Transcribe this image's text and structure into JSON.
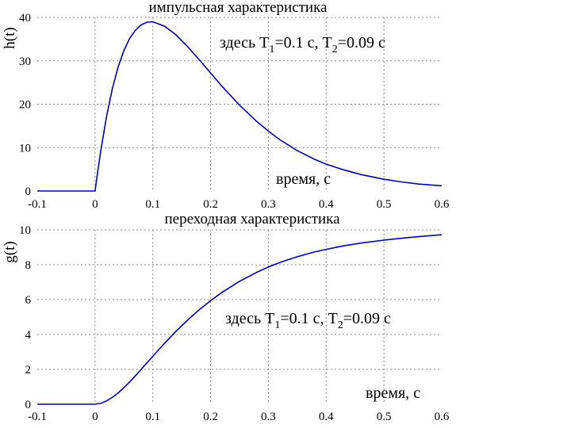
{
  "chart_data": [
    {
      "type": "line",
      "title": "импульсная характеристика",
      "ylabel": "h(t)",
      "xlabel": "время, с",
      "annotation": {
        "prefix": "здесь T",
        "sub1": "1",
        "mid": "=0.1 с, T",
        "sub2": "2",
        "suffix": "=0.09 с"
      },
      "xlim": [
        -0.1,
        0.6
      ],
      "ylim": [
        0,
        40
      ],
      "xticks": [
        "-0.1",
        "0",
        "0.1",
        "0.2",
        "0.3",
        "0.4",
        "0.5",
        "0.6"
      ],
      "xtick_values": [
        -0.1,
        0,
        0.1,
        0.2,
        0.3,
        0.4,
        0.5,
        0.6
      ],
      "yticks": [
        "0",
        "10",
        "20",
        "30",
        "40"
      ],
      "ytick_values": [
        0,
        10,
        20,
        30,
        40
      ],
      "grid": true,
      "line_color": "#0000cc",
      "series": [
        {
          "x": [
            -0.1,
            0,
            0.005,
            0.01,
            0.02,
            0.03,
            0.04,
            0.05,
            0.06,
            0.07,
            0.08,
            0.09,
            0.1,
            0.12,
            0.14,
            0.16,
            0.18,
            0.2,
            0.22,
            0.25,
            0.28,
            0.3,
            0.32,
            0.35,
            0.38,
            0.4,
            0.43,
            0.46,
            0.5,
            0.53,
            0.56,
            0.6
          ],
          "y": [
            0,
            0,
            4.8,
            9.3,
            17.2,
            23.6,
            28.6,
            32.4,
            35.2,
            37.1,
            38.3,
            38.9,
            39.0,
            38.0,
            36.0,
            33.3,
            30.3,
            27.2,
            24.1,
            19.8,
            16.0,
            13.8,
            11.8,
            9.3,
            7.3,
            6.2,
            4.9,
            3.8,
            2.7,
            2.1,
            1.6,
            1.2
          ]
        }
      ]
    },
    {
      "type": "line",
      "title": "переходная характеристика",
      "ylabel": "g(t)",
      "xlabel": "время, с",
      "annotation": {
        "prefix": "здесь T",
        "sub1": "1",
        "mid": "=0.1 с, T",
        "sub2": "2",
        "suffix": "=0.09 с"
      },
      "xlim": [
        -0.1,
        0.6
      ],
      "ylim": [
        0,
        10
      ],
      "xticks": [
        "-0.1",
        "0",
        "0.1",
        "0.2",
        "0.3",
        "0.4",
        "0.5",
        "0.6"
      ],
      "xtick_values": [
        -0.1,
        0,
        0.1,
        0.2,
        0.3,
        0.4,
        0.5,
        0.6
      ],
      "yticks": [
        "0",
        "2",
        "4",
        "6",
        "8",
        "10"
      ],
      "ytick_values": [
        0,
        2,
        4,
        6,
        8,
        10
      ],
      "grid": true,
      "line_color": "#0000cc",
      "series": [
        {
          "x": [
            -0.1,
            0,
            0.01,
            0.02,
            0.03,
            0.04,
            0.05,
            0.06,
            0.07,
            0.08,
            0.09,
            0.1,
            0.12,
            0.14,
            0.16,
            0.18,
            0.2,
            0.22,
            0.25,
            0.28,
            0.3,
            0.32,
            0.35,
            0.38,
            0.4,
            0.43,
            0.46,
            0.5,
            0.53,
            0.56,
            0.6
          ],
          "y": [
            0,
            0,
            0.05,
            0.19,
            0.39,
            0.65,
            0.95,
            1.28,
            1.64,
            2.0,
            2.38,
            2.75,
            3.48,
            4.18,
            4.82,
            5.41,
            5.94,
            6.42,
            7.05,
            7.57,
            7.87,
            8.13,
            8.46,
            8.73,
            8.88,
            9.08,
            9.24,
            9.41,
            9.52,
            9.61,
            9.72
          ]
        }
      ]
    }
  ]
}
